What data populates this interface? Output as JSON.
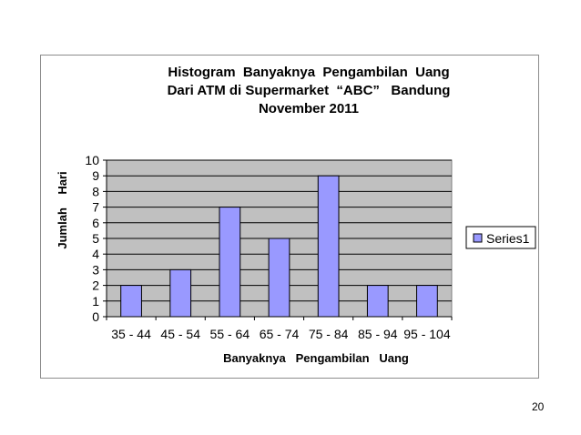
{
  "slide": {
    "number": "20"
  },
  "chart_data": {
    "type": "bar",
    "title": [
      "Histogram  Banyaknya  Pengambilan  Uang",
      "Dari ATM di Supermarket  “ABC”   Bandung",
      "November 2011"
    ],
    "xlabel": "Banyaknya   Pengambilan   Uang",
    "ylabel": "Jumlah    Hari",
    "categories": [
      "35 - 44",
      "45 - 54",
      "55 - 64",
      "65 - 74",
      "75 - 84",
      "85 - 94",
      "95 - 104"
    ],
    "series": [
      {
        "name": "Series1",
        "values": [
          2,
          3,
          7,
          5,
          9,
          2,
          2
        ]
      }
    ],
    "ylim": [
      0,
      10
    ],
    "yticks": [
      "0",
      "1",
      "2",
      "3",
      "4",
      "5",
      "6",
      "7",
      "8",
      "9",
      "10"
    ],
    "grid": true,
    "legend": "right",
    "colors": {
      "bar_fill": "#9999ff",
      "bar_stroke": "#000000",
      "plot_bg": "#c0c0c0",
      "grid": "#000000"
    }
  }
}
